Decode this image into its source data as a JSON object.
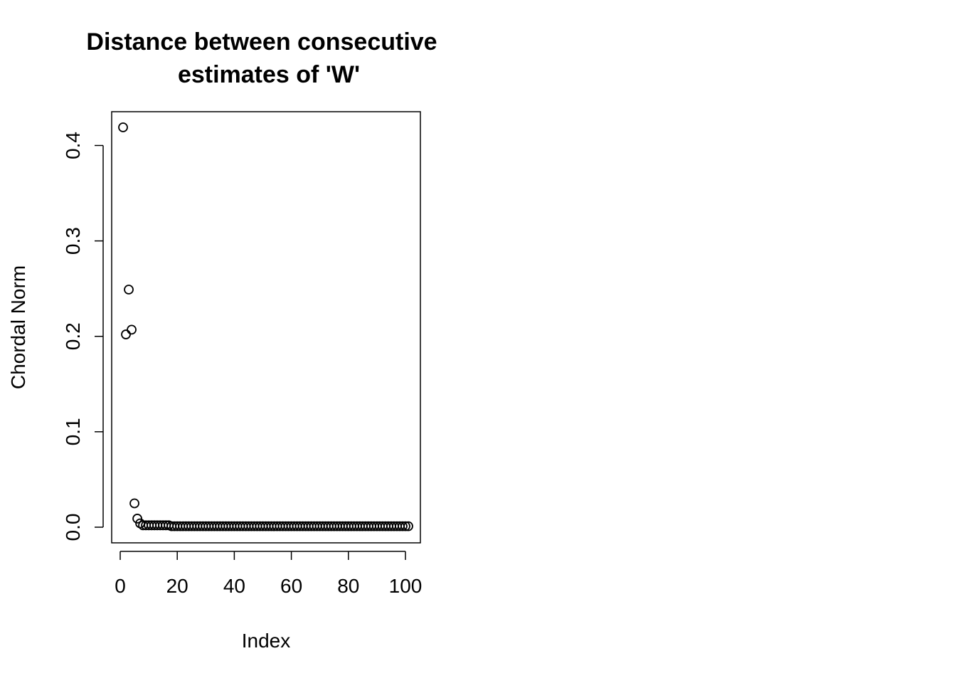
{
  "chart_data": {
    "type": "scatter",
    "title_lines": [
      "Distance between consecutive",
      "estimates of 'W'"
    ],
    "xlabel": "Index",
    "ylabel": "Chordal Norm",
    "xlim": [
      1,
      101
    ],
    "ylim": [
      0.0,
      0.419
    ],
    "x_ticks": [
      0,
      20,
      40,
      60,
      80,
      100
    ],
    "x_tick_labels": [
      "0",
      "20",
      "40",
      "60",
      "80",
      "100"
    ],
    "y_ticks": [
      0.0,
      0.1,
      0.2,
      0.3,
      0.4
    ],
    "y_tick_labels": [
      "0.0",
      "0.1",
      "0.2",
      "0.3",
      "0.4"
    ],
    "grid": false,
    "legend": "none",
    "marker": "open-circle",
    "point_color": "#000000",
    "x": [
      1,
      2,
      3,
      4,
      5,
      6,
      7,
      8,
      9,
      10,
      11,
      12,
      13,
      14,
      15,
      16,
      17,
      18,
      19,
      20,
      21,
      22,
      23,
      24,
      25,
      26,
      27,
      28,
      29,
      30,
      31,
      32,
      33,
      34,
      35,
      36,
      37,
      38,
      39,
      40,
      41,
      42,
      43,
      44,
      45,
      46,
      47,
      48,
      49,
      50,
      51,
      52,
      53,
      54,
      55,
      56,
      57,
      58,
      59,
      60,
      61,
      62,
      63,
      64,
      65,
      66,
      67,
      68,
      69,
      70,
      71,
      72,
      73,
      74,
      75,
      76,
      77,
      78,
      79,
      80,
      81,
      82,
      83,
      84,
      85,
      86,
      87,
      88,
      89,
      90,
      91,
      92,
      93,
      94,
      95,
      96,
      97,
      98,
      99,
      100,
      101
    ],
    "y": [
      0.419,
      0.202,
      0.249,
      0.207,
      0.025,
      0.009,
      0.004,
      0.002,
      0.002,
      0.002,
      0.002,
      0.002,
      0.002,
      0.002,
      0.002,
      0.002,
      0.002,
      0.001,
      0.001,
      0.001,
      0.001,
      0.001,
      0.001,
      0.001,
      0.001,
      0.001,
      0.001,
      0.001,
      0.001,
      0.001,
      0.001,
      0.001,
      0.001,
      0.001,
      0.001,
      0.001,
      0.001,
      0.001,
      0.001,
      0.001,
      0.001,
      0.001,
      0.001,
      0.001,
      0.001,
      0.001,
      0.001,
      0.001,
      0.001,
      0.001,
      0.001,
      0.001,
      0.001,
      0.001,
      0.001,
      0.001,
      0.001,
      0.001,
      0.001,
      0.001,
      0.001,
      0.001,
      0.001,
      0.001,
      0.001,
      0.001,
      0.001,
      0.001,
      0.001,
      0.001,
      0.001,
      0.001,
      0.001,
      0.001,
      0.001,
      0.001,
      0.001,
      0.001,
      0.001,
      0.001,
      0.001,
      0.001,
      0.001,
      0.001,
      0.001,
      0.001,
      0.001,
      0.001,
      0.001,
      0.001,
      0.001,
      0.001,
      0.001,
      0.001,
      0.001,
      0.001,
      0.001,
      0.001,
      0.001,
      0.001,
      0.001
    ]
  }
}
